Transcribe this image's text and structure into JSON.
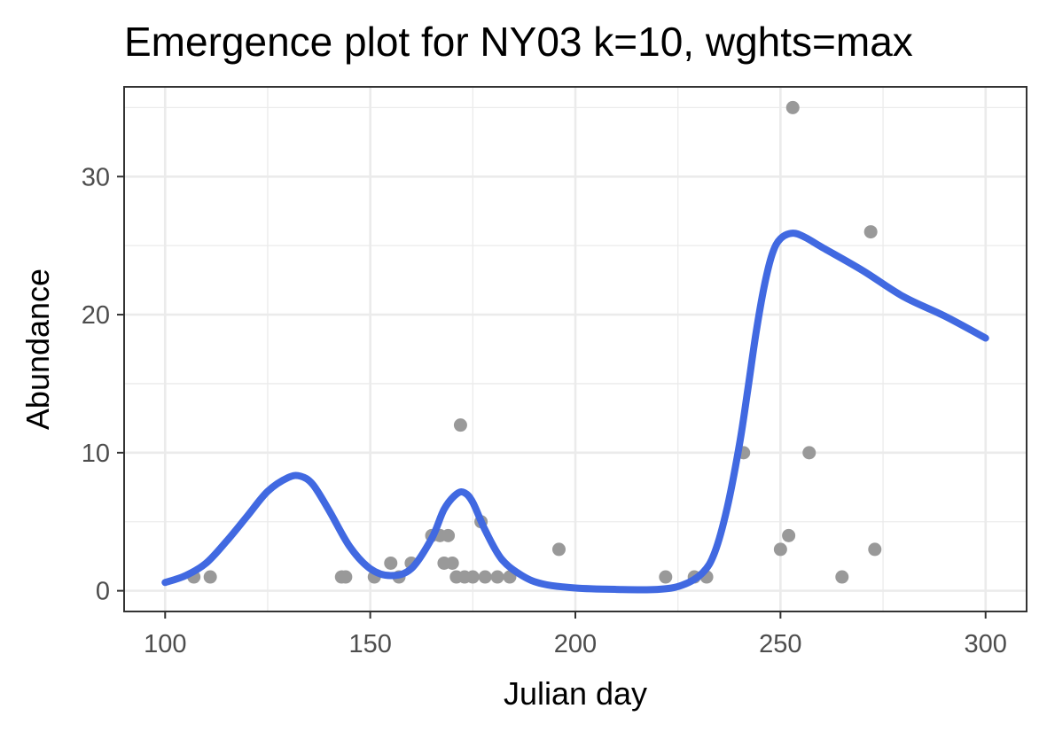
{
  "chart_data": {
    "type": "scatter",
    "title": "Emergence plot for NY03 k=10, wghts=max",
    "xlabel": "Julian day",
    "ylabel": "Abundance",
    "xlim": [
      90,
      310
    ],
    "ylim": [
      -1.5,
      36.5
    ],
    "x_ticks": [
      100,
      150,
      200,
      250,
      300
    ],
    "y_ticks": [
      0,
      10,
      20,
      30
    ],
    "x_minor": [
      125,
      175,
      225,
      275
    ],
    "y_minor": [
      5,
      15,
      25,
      35
    ],
    "grid": true,
    "legend": "none",
    "colors": {
      "points": "#999999",
      "curve": "#4169e1",
      "grid": "#ebebeb",
      "border": "#333333"
    },
    "series": [
      {
        "kind": "points",
        "x": [
          107,
          111,
          143,
          144,
          151,
          155,
          157,
          160,
          165,
          167,
          168,
          169,
          170,
          171,
          172,
          173,
          175,
          177,
          178,
          181,
          184,
          196,
          222,
          229,
          232,
          241,
          250,
          252,
          253,
          257,
          265,
          272,
          273
        ],
        "y": [
          1,
          1,
          1,
          1,
          1,
          2,
          1,
          2,
          4,
          4,
          2,
          4,
          2,
          1,
          12,
          1,
          1,
          5,
          1,
          1,
          1,
          3,
          1,
          1,
          1,
          10,
          3,
          4,
          35,
          10,
          1,
          26,
          3
        ]
      },
      {
        "kind": "line",
        "x": [
          100,
          105,
          110,
          115,
          120,
          125,
          130,
          133,
          136,
          140,
          145,
          150,
          155,
          160,
          165,
          168,
          171,
          173,
          175,
          178,
          182,
          187,
          192,
          200,
          210,
          220,
          226,
          231,
          234,
          237,
          240,
          242,
          244,
          246,
          248,
          250,
          253,
          256,
          260,
          270,
          280,
          290,
          300
        ],
        "y": [
          0.6,
          1.1,
          2.0,
          3.6,
          5.4,
          7.2,
          8.2,
          8.3,
          7.7,
          5.8,
          3.2,
          1.6,
          1.1,
          1.6,
          3.8,
          5.9,
          7.0,
          7.1,
          6.4,
          4.4,
          2.3,
          1.1,
          0.5,
          0.2,
          0.1,
          0.1,
          0.4,
          1.3,
          2.8,
          6.0,
          10.6,
          14.5,
          18.6,
          22.0,
          24.4,
          25.5,
          25.9,
          25.6,
          24.9,
          23.2,
          21.3,
          19.9,
          18.3
        ]
      }
    ]
  }
}
